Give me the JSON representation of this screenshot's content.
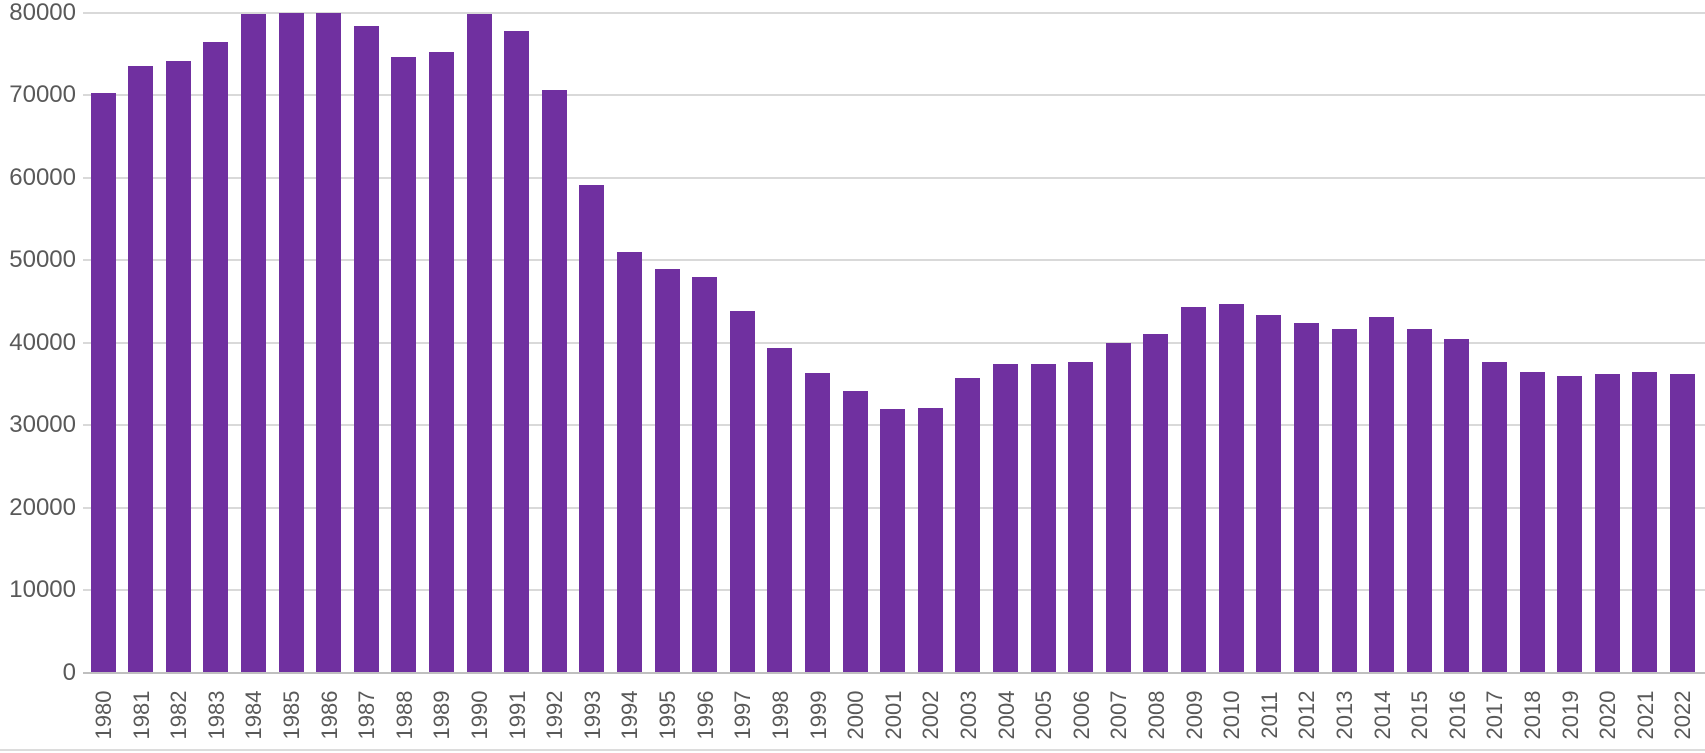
{
  "chart_data": {
    "type": "bar",
    "title": "",
    "xlabel": "",
    "ylabel": "",
    "categories": [
      "1980",
      "1981",
      "1982",
      "1983",
      "1984",
      "1985",
      "1986",
      "1987",
      "1988",
      "1989",
      "1990",
      "1991",
      "1992",
      "1993",
      "1994",
      "1995",
      "1996",
      "1997",
      "1998",
      "1999",
      "2000",
      "2001",
      "2002",
      "2003",
      "2004",
      "2005",
      "2006",
      "2007",
      "2008",
      "2009",
      "2010",
      "2011",
      "2012",
      "2013",
      "2014",
      "2015",
      "2016",
      "2017",
      "2018",
      "2019",
      "2020",
      "2021",
      "2022"
    ],
    "values": [
      70300,
      73500,
      74100,
      76400,
      79800,
      80000,
      80000,
      78400,
      74700,
      75200,
      79800,
      77800,
      70600,
      59100,
      51000,
      48900,
      48000,
      43800,
      39300,
      36300,
      34100,
      32000,
      32100,
      35700,
      37400,
      37400,
      37600,
      40000,
      41000,
      44300,
      44700,
      43300,
      42400,
      41600,
      43100,
      41600,
      40500,
      37600,
      36400,
      35900,
      36200,
      36500,
      36200
    ],
    "ylim": [
      0,
      80000
    ],
    "yticks": [
      0,
      10000,
      20000,
      30000,
      40000,
      50000,
      60000,
      70000,
      80000
    ],
    "ytick_labels": [
      "0",
      "10000",
      "20000",
      "30000",
      "40000",
      "50000",
      "60000",
      "70000",
      "80000"
    ],
    "grid": true,
    "legend": false,
    "bar_color": "#7030A0",
    "gridline_color": "#D9D9D9",
    "axis_line_color": "#BFBFBF",
    "tick_label_color": "#595959"
  }
}
